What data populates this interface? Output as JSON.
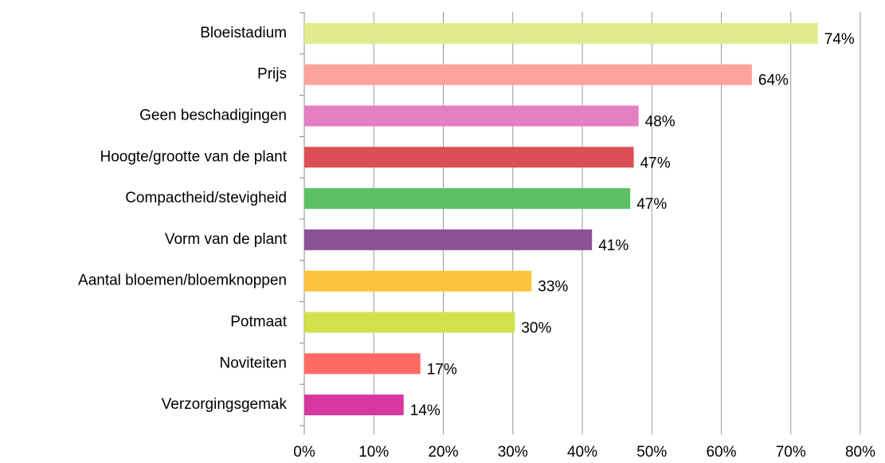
{
  "chart_data": {
    "type": "bar",
    "orientation": "horizontal",
    "categories": [
      "Bloeistadium",
      "Prijs",
      "Geen beschadigingen",
      "Hoogte/grootte van de plant",
      "Compactheid/stevigheid",
      "Vorm van de plant",
      "Aantal bloemen/bloemknoppen",
      "Potmaat",
      "Noviteiten",
      "Verzorgingsgemak"
    ],
    "values": [
      73.9,
      64.4,
      48.1,
      47.4,
      46.9,
      41.4,
      32.7,
      30.3,
      16.7,
      14.3
    ],
    "value_labels": [
      "74%",
      "64%",
      "48%",
      "47%",
      "47%",
      "41%",
      "33%",
      "30%",
      "17%",
      "14%"
    ],
    "colors": [
      "#e0eb8e",
      "#fca39d",
      "#e47fc3",
      "#dd4f58",
      "#5cc163",
      "#8b5396",
      "#fcc23d",
      "#d2e04c",
      "#fe6b63",
      "#d7379e"
    ],
    "xlim": [
      0,
      80
    ],
    "xticks": [
      {
        "value": 0,
        "label": "0%"
      },
      {
        "value": 10,
        "label": "10%"
      },
      {
        "value": 20,
        "label": "20%"
      },
      {
        "value": 30,
        "label": "30%"
      },
      {
        "value": 40,
        "label": "40%"
      },
      {
        "value": 50,
        "label": "50%"
      },
      {
        "value": 60,
        "label": "60%"
      },
      {
        "value": 70,
        "label": "70%"
      },
      {
        "value": 80,
        "label": "80%"
      }
    ],
    "grid": true
  }
}
